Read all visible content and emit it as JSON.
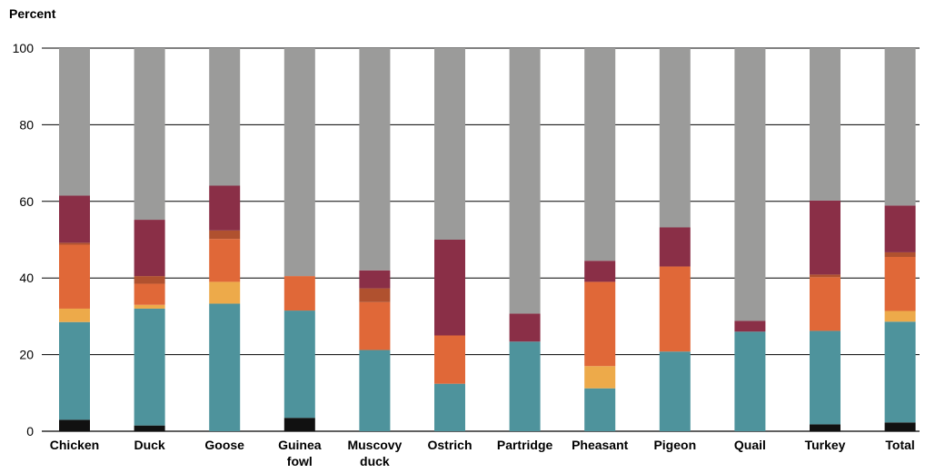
{
  "chart_data": {
    "type": "bar",
    "stacked": true,
    "ylabel": "Percent",
    "ylim": [
      0,
      100
    ],
    "yticks": [
      0,
      20,
      40,
      60,
      80,
      100
    ],
    "grid": true,
    "categories": [
      [
        "Chicken"
      ],
      [
        "Duck"
      ],
      [
        "Goose"
      ],
      [
        "Guinea",
        "fowl"
      ],
      [
        "Muscovy",
        "duck"
      ],
      [
        "Ostrich"
      ],
      [
        "Partridge"
      ],
      [
        "Pheasant"
      ],
      [
        "Pigeon"
      ],
      [
        "Quail"
      ],
      [
        "Turkey"
      ],
      [
        "Total"
      ]
    ],
    "series": [
      {
        "color": "#111111",
        "values": [
          3.0,
          1.5,
          0,
          3.5,
          0,
          0,
          0,
          0,
          0,
          0,
          1.8,
          2.3
        ]
      },
      {
        "color": "#4e939c",
        "values": [
          25.5,
          30.5,
          33.3,
          28.0,
          21.2,
          12.4,
          23.4,
          11.2,
          20.8,
          26.0,
          24.4,
          26.3
        ]
      },
      {
        "color": "#edaa4a",
        "values": [
          3.5,
          1.0,
          5.7,
          0,
          0,
          0,
          0,
          5.8,
          0,
          0,
          0,
          2.8
        ]
      },
      {
        "color": "#e06838",
        "values": [
          16.7,
          5.5,
          11.2,
          9.0,
          12.5,
          12.6,
          0,
          22.0,
          22.2,
          0,
          14.0,
          14.1
        ]
      },
      {
        "color": "#b0512f",
        "values": [
          0.5,
          2.0,
          2.2,
          0,
          3.6,
          0,
          0,
          0,
          0,
          0,
          0.7,
          1.2
        ]
      },
      {
        "color": "#8a2f47",
        "values": [
          12.3,
          14.7,
          11.7,
          0,
          4.7,
          25.0,
          7.3,
          5.5,
          10.2,
          2.8,
          19.3,
          12.2
        ]
      },
      {
        "color": "#9b9b9a",
        "values": [
          38.5,
          44.8,
          35.9,
          59.5,
          58.0,
          50.0,
          69.3,
          55.5,
          46.8,
          71.2,
          39.8,
          41.1
        ]
      }
    ]
  }
}
